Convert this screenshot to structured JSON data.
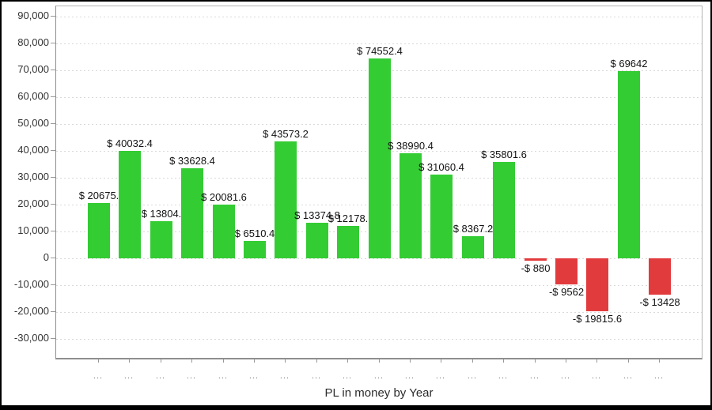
{
  "chart_data": {
    "type": "bar",
    "title": "PL in money by Year",
    "categories": [
      "...",
      "...",
      "...",
      "...",
      "...",
      "...",
      "...",
      "...",
      "...",
      "...",
      "...",
      "...",
      "...",
      "...",
      "...",
      "...",
      "...",
      "...",
      "..."
    ],
    "values": [
      20675,
      40032.4,
      13804,
      33628.4,
      20081.6,
      6510.4,
      43573.2,
      13374.8,
      12178,
      74552.4,
      38990.4,
      31060.4,
      8367.2,
      35801.6,
      -880,
      -9562,
      -19815.6,
      69642,
      -13428
    ],
    "bar_labels": [
      "$ 20675.",
      "$ 40032.4",
      "$ 13804.",
      "$ 33628.4",
      "$ 20081.6",
      "$ 6510.4",
      "$ 43573.2",
      "$ 13374.8",
      "$ 12178.",
      "$ 74552.4",
      "$ 38990.4",
      "$ 31060.4",
      "$ 8367.2",
      "$ 35801.6",
      "-$ 880",
      "-$ 9562",
      "-$ 19815.6",
      "$ 69642",
      "-$ 13428"
    ],
    "y_axis": {
      "tick_values": [
        90000,
        80000,
        70000,
        60000,
        50000,
        40000,
        30000,
        20000,
        10000,
        0,
        -10000,
        -20000,
        -30000
      ],
      "tick_labels": [
        "90,000",
        "80,000",
        "70,000",
        "60,000",
        "50,000",
        "40,000",
        "30,000",
        "20,000",
        "10,000",
        "0",
        "-10,000",
        "-20,000",
        "-30,000"
      ]
    },
    "ylim": [
      -38000,
      94000
    ],
    "xlabel": "PL in money by Year",
    "ylabel": "",
    "grid": "horizontal-dashed",
    "legend": "none",
    "colors": {
      "positive": "#33CC33",
      "negative": "#E23B3E",
      "grid": "#D9D9D9",
      "axis": "#999999",
      "value_label": "#121212",
      "y_tick_label": "#333333",
      "x_tick_label": "#7D7D7D"
    }
  }
}
